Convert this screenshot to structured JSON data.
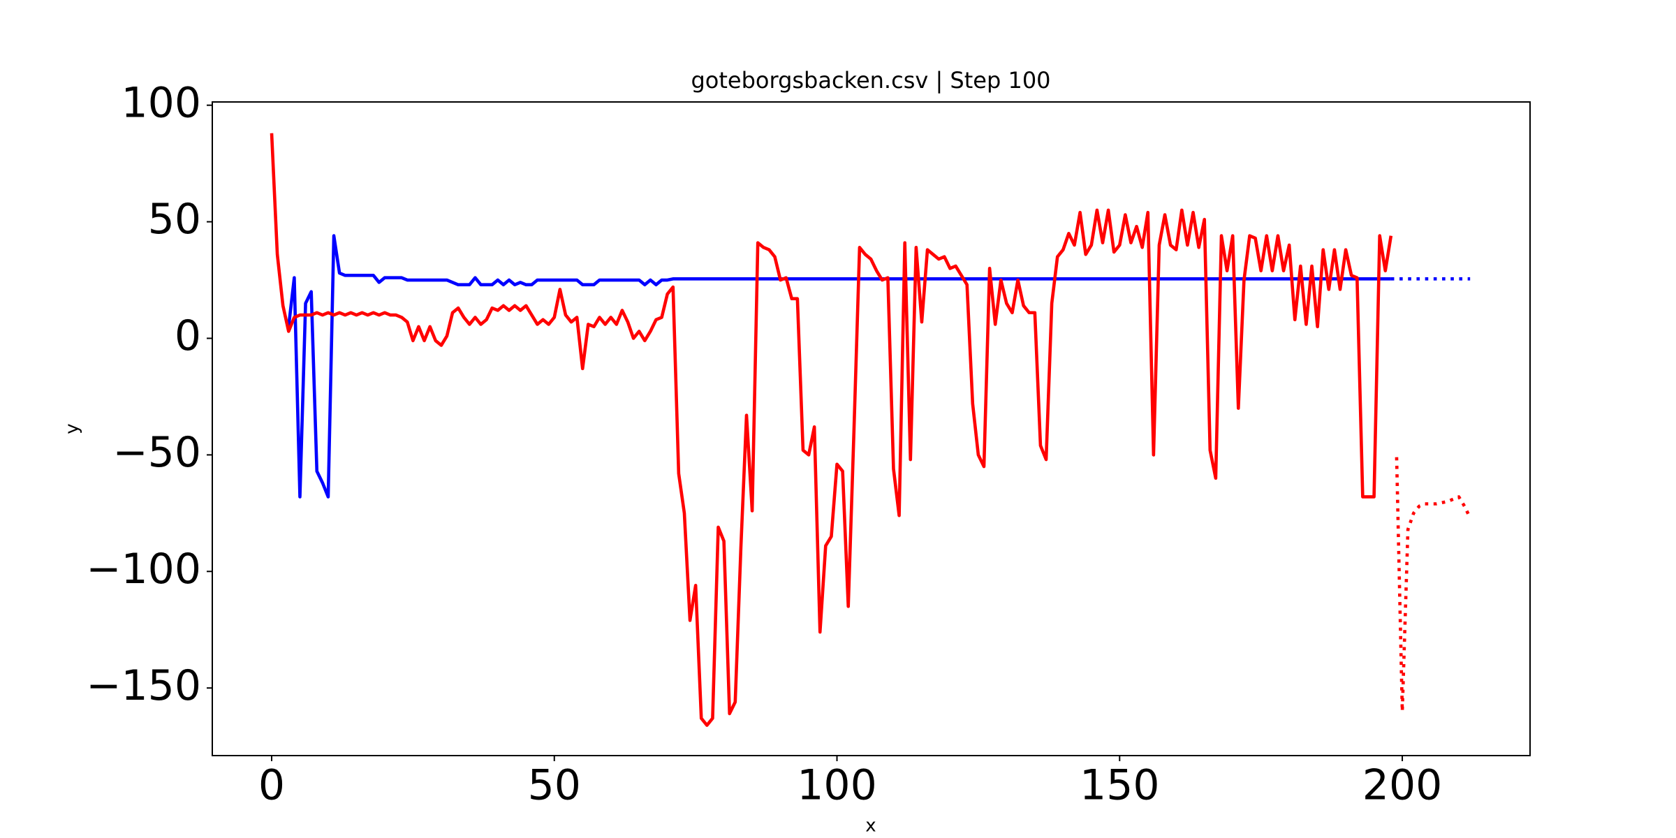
{
  "chart_data": {
    "type": "line",
    "title": "goteborgsbacken.csv | Step 100",
    "xlabel": "x",
    "ylabel": "y",
    "xlim": [
      -10.5,
      222.6
    ],
    "ylim": [
      -179,
      101.4
    ],
    "xticks": [
      0,
      50,
      100,
      150,
      200
    ],
    "yticks": [
      {
        "value": -150,
        "label": "−150"
      },
      {
        "value": -100,
        "label": "−100"
      },
      {
        "value": -50,
        "label": "−50"
      },
      0,
      50,
      100
    ],
    "grid": false,
    "series": [
      {
        "color": "#0000ff",
        "style": "solid",
        "x": [
          3,
          4,
          5,
          6,
          7,
          8,
          9,
          10,
          11,
          12,
          13,
          14,
          15,
          16,
          17,
          18,
          19,
          20,
          21,
          22,
          23,
          24,
          25,
          26,
          27,
          28,
          29,
          30,
          31,
          32,
          33,
          34,
          35,
          36,
          37,
          38,
          39,
          40,
          41,
          42,
          43,
          44,
          45,
          46,
          47,
          48,
          49,
          50,
          51,
          52,
          53,
          54,
          55,
          56,
          57,
          58,
          59,
          60,
          61,
          62,
          63,
          64,
          65,
          66,
          67,
          68,
          69,
          70,
          71,
          198
        ],
        "values": [
          5,
          26,
          -68,
          15,
          20,
          -57,
          -62,
          -68,
          44,
          28,
          27,
          27,
          27,
          27,
          27,
          27,
          24,
          26,
          26,
          26,
          26,
          25,
          25,
          25,
          25,
          25,
          25,
          25,
          25,
          24,
          23,
          23,
          23,
          26,
          23,
          23,
          23,
          25,
          23,
          25,
          23,
          24,
          23,
          23,
          25,
          25,
          25,
          25,
          25,
          25,
          25,
          25,
          23,
          23,
          23,
          25,
          25,
          25,
          25,
          25,
          25,
          25,
          25,
          23,
          25,
          23,
          25,
          25,
          25.5,
          25.5
        ]
      },
      {
        "color": "#0000ff",
        "style": "dotted",
        "x": [
          198,
          212
        ],
        "values": [
          25.5,
          25.5
        ]
      },
      {
        "color": "#ff0000",
        "style": "solid",
        "x": [
          0,
          1,
          2,
          3,
          4,
          5,
          6,
          7,
          8,
          9,
          10,
          11,
          12,
          13,
          14,
          15,
          16,
          17,
          18,
          19,
          20,
          21,
          22,
          23,
          24,
          25,
          26,
          27,
          28,
          29,
          30,
          31,
          32,
          33,
          34,
          35,
          36,
          37,
          38,
          39,
          40,
          41,
          42,
          43,
          44,
          45,
          46,
          47,
          48,
          49,
          50,
          51,
          52,
          53,
          54,
          55,
          56,
          57,
          58,
          59,
          60,
          61,
          62,
          63,
          64,
          65,
          66,
          67,
          68,
          69,
          70,
          71,
          72,
          73,
          74,
          75,
          76,
          77,
          78,
          79,
          80,
          81,
          82,
          83,
          84,
          85,
          86,
          87,
          88,
          89,
          90,
          91,
          92,
          93,
          94,
          95,
          96,
          97,
          98,
          99,
          100,
          101,
          102,
          103,
          104,
          105,
          106,
          107,
          108,
          109,
          110,
          111,
          112,
          113,
          114,
          115,
          116,
          117,
          118,
          119,
          120,
          121,
          122,
          123,
          124,
          125,
          126,
          127,
          128,
          129,
          130,
          131,
          132,
          133,
          134,
          135,
          136,
          137,
          138,
          139,
          140,
          141,
          142,
          143,
          144,
          145,
          146,
          147,
          148,
          149,
          150,
          151,
          152,
          153,
          154,
          155,
          156,
          157,
          158,
          159,
          160,
          161,
          162,
          163,
          164,
          165,
          166,
          167,
          168,
          169,
          170,
          171,
          172,
          173,
          174,
          175,
          176,
          177,
          178,
          179,
          180,
          181,
          182,
          183,
          184,
          185,
          186,
          187,
          188,
          189,
          190,
          191,
          192,
          193,
          194,
          195,
          196,
          197,
          198
        ],
        "values": [
          88,
          36,
          14,
          3,
          9,
          10,
          10,
          10,
          11,
          10,
          11,
          10,
          11,
          10,
          11,
          10,
          11,
          10,
          11,
          10,
          11,
          10,
          10,
          9,
          7,
          -1,
          5,
          -1,
          5,
          -1,
          -3,
          1,
          11,
          13,
          9,
          6,
          9,
          6,
          8,
          13,
          12,
          14,
          12,
          14,
          12,
          14,
          10,
          6,
          8,
          6,
          9,
          21,
          10,
          7,
          9,
          -13,
          6,
          5,
          9,
          6,
          9,
          6,
          12,
          7,
          0,
          3,
          -1,
          3,
          8,
          9,
          19,
          22,
          -58,
          -75,
          -121,
          -106,
          -163,
          -166,
          -163,
          -81,
          -87,
          -161,
          -156,
          -90,
          -33,
          -74,
          41,
          39,
          38,
          35,
          25,
          26,
          17,
          17,
          -48,
          -50,
          -38,
          -126,
          -89,
          -85,
          -54,
          -57,
          -115,
          -40,
          39,
          36,
          34,
          29,
          25,
          26,
          -56,
          -76,
          41,
          -52,
          39,
          7,
          38,
          36,
          34,
          35,
          30,
          31,
          27,
          23,
          -28,
          -50,
          -55,
          30,
          6,
          25,
          15,
          11,
          25,
          14,
          11,
          11,
          -46,
          -52,
          15,
          35,
          38,
          45,
          40,
          54,
          36,
          40,
          55,
          41,
          55,
          37,
          40,
          53,
          41,
          48,
          39,
          54,
          -50,
          40,
          53,
          40,
          38,
          55,
          40,
          54,
          39,
          51,
          -48,
          -60,
          44,
          29,
          44,
          -30,
          25,
          44,
          43,
          29,
          44,
          29,
          44,
          29,
          40,
          8,
          31,
          6,
          31,
          5,
          38,
          21,
          38,
          21,
          38,
          27,
          26,
          -68,
          -68,
          -68,
          44,
          29,
          44
        ]
      },
      {
        "color": "#ff0000",
        "style": "dotted",
        "x": [
          199,
          200,
          201,
          202,
          203,
          204,
          206,
          208,
          210,
          211,
          212
        ],
        "values": [
          -51,
          -160,
          -82,
          -75,
          -72,
          -71,
          -71,
          -70,
          -68,
          -72,
          -77
        ]
      }
    ]
  }
}
